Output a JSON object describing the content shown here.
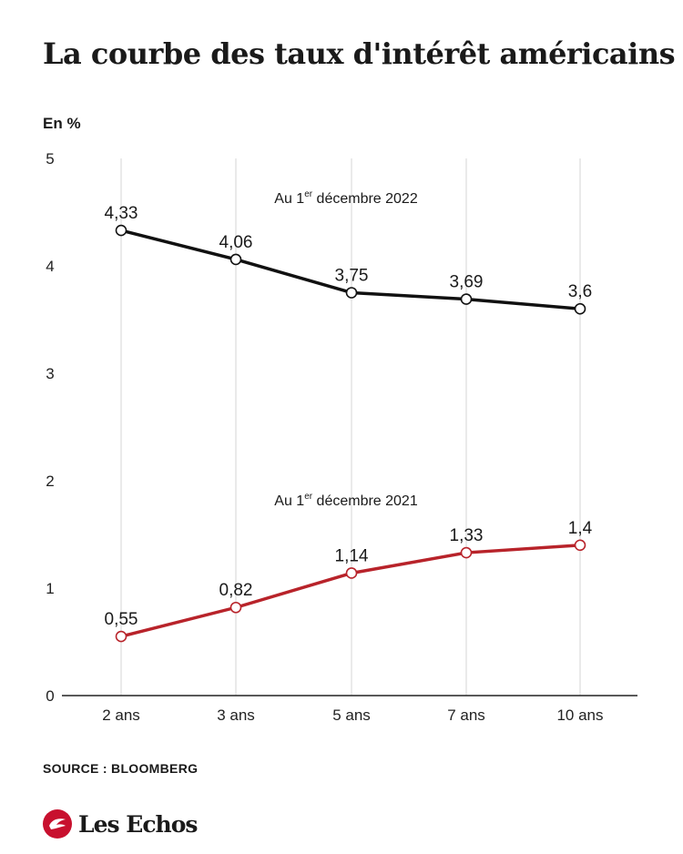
{
  "title": "La courbe des taux d'intérêt américains",
  "unit": "En %",
  "source": "SOURCE : BLOOMBERG",
  "brand": "Les Echos",
  "chart_data": {
    "type": "line",
    "categories": [
      "2 ans",
      "3 ans",
      "5 ans",
      "7 ans",
      "10 ans"
    ],
    "ylim": [
      0,
      5
    ],
    "yticks": [
      "0",
      "1",
      "2",
      "3",
      "4",
      "5"
    ],
    "grid": "vertical",
    "series": [
      {
        "name_prefix": "Au 1",
        "name_sup": "er",
        "name_suffix": " décembre 2022",
        "values": [
          4.33,
          4.06,
          3.75,
          3.69,
          3.6
        ],
        "labels": [
          "4,33",
          "4,06",
          "3,75",
          "3,69",
          "3,6"
        ],
        "color": "#111111"
      },
      {
        "name_prefix": "Au 1",
        "name_sup": "er",
        "name_suffix": " décembre 2021",
        "values": [
          0.55,
          0.82,
          1.14,
          1.33,
          1.4
        ],
        "labels": [
          "0,55",
          "0,82",
          "1,14",
          "1,33",
          "1,4"
        ],
        "color": "#b8232a"
      }
    ]
  }
}
